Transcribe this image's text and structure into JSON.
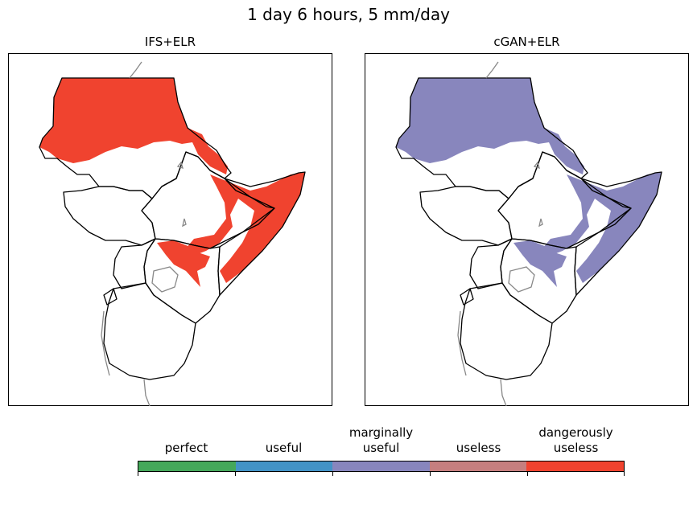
{
  "figure": {
    "title": "1 day 6 hours, 5 mm/day"
  },
  "panels": [
    {
      "title": "IFS+ELR",
      "fill_color": "#f0432f"
    },
    {
      "title": "cGAN+ELR",
      "fill_color": "#8886bd"
    }
  ],
  "colorbar": {
    "categories": [
      {
        "label": "perfect",
        "color": "#45a85a"
      },
      {
        "label": "useful",
        "color": "#4393c6"
      },
      {
        "label": "marginally\nuseful",
        "color": "#8886bd"
      },
      {
        "label": "useless",
        "color": "#c57f7f"
      },
      {
        "label": "dangerously\nuseless",
        "color": "#f0432f"
      }
    ]
  },
  "styles": {
    "border_color": "#000000",
    "lake_color": "#888888"
  }
}
